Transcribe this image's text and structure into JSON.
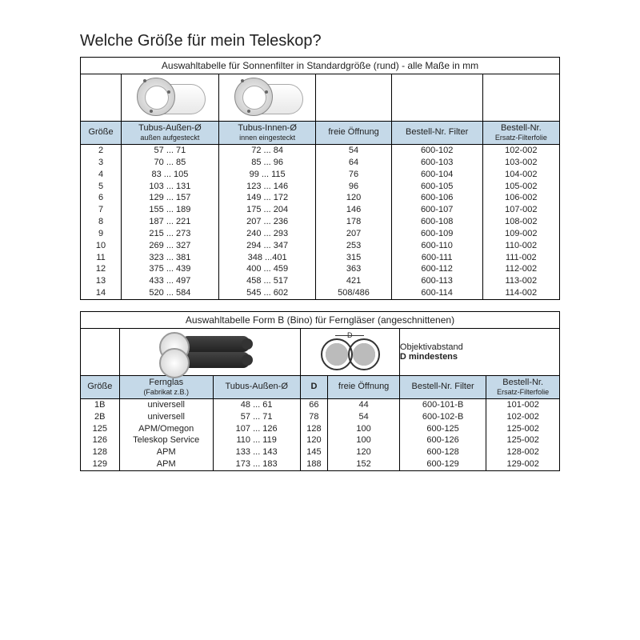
{
  "title": "Welche Größe für mein Teleskop?",
  "table1": {
    "caption": "Auswahltabelle für Sonnenfilter in Standardgröße (rund) - alle Maße in mm",
    "headers": {
      "size": "Größe",
      "outer": "Tubus-Außen-Ø",
      "outer_sub": "außen aufgesteckt",
      "inner": "Tubus-Innen-Ø",
      "inner_sub": "innen eingesteckt",
      "opening": "freie Öffnung",
      "order_filter": "Bestell-Nr. Filter",
      "order_foil": "Bestell-Nr.",
      "order_foil_sub": "Ersatz-Filterfolie"
    },
    "rows": [
      {
        "size": "2",
        "outer": "57 ... 71",
        "inner": "72 ... 84",
        "opening": "54",
        "filter": "600-102",
        "foil": "102-002"
      },
      {
        "size": "3",
        "outer": "70 ... 85",
        "inner": "85 ... 96",
        "opening": "64",
        "filter": "600-103",
        "foil": "103-002"
      },
      {
        "size": "4",
        "outer": "83 ... 105",
        "inner": "99 ... 115",
        "opening": "76",
        "filter": "600-104",
        "foil": "104-002"
      },
      {
        "size": "5",
        "outer": "103 ... 131",
        "inner": "123 ... 146",
        "opening": "96",
        "filter": "600-105",
        "foil": "105-002"
      },
      {
        "size": "6",
        "outer": "129 ... 157",
        "inner": "149 ... 172",
        "opening": "120",
        "filter": "600-106",
        "foil": "106-002"
      },
      {
        "size": "7",
        "outer": "155 ... 189",
        "inner": "175 ... 204",
        "opening": "146",
        "filter": "600-107",
        "foil": "107-002"
      },
      {
        "size": "8",
        "outer": "187 ... 221",
        "inner": "207 ... 236",
        "opening": "178",
        "filter": "600-108",
        "foil": "108-002"
      },
      {
        "size": "9",
        "outer": "215 ... 273",
        "inner": "240 ... 293",
        "opening": "207",
        "filter": "600-109",
        "foil": "109-002"
      },
      {
        "size": "10",
        "outer": "269 ... 327",
        "inner": "294 ... 347",
        "opening": "253",
        "filter": "600-110",
        "foil": "110-002"
      },
      {
        "size": "11",
        "outer": "323 ... 381",
        "inner": "348 ...401",
        "opening": "315",
        "filter": "600-111",
        "foil": "111-002"
      },
      {
        "size": "12",
        "outer": "375 ... 439",
        "inner": "400 ... 459",
        "opening": "363",
        "filter": "600-112",
        "foil": "112-002"
      },
      {
        "size": "13",
        "outer": "433 ... 497",
        "inner": "458 ... 517",
        "opening": "421",
        "filter": "600-113",
        "foil": "113-002"
      },
      {
        "size": "14",
        "outer": "520 ... 584",
        "inner": "545 ... 602",
        "opening": "508/486",
        "filter": "600-114",
        "foil": "114-002"
      }
    ]
  },
  "table2": {
    "caption": "Auswahltabelle Form B (Bino) für Ferngläser  (angeschnittenen)",
    "diagram_text1": "Objektivabstand",
    "diagram_text2": "D mindestens",
    "headers": {
      "size": "Größe",
      "fernglas": "Fernglas",
      "fernglas_sub": "(Fabrikat z.B.)",
      "outer": "Tubus-Außen-Ø",
      "d": "D",
      "opening": "freie Öffnung",
      "order_filter": "Bestell-Nr. Filter",
      "order_foil": "Bestell-Nr.",
      "order_foil_sub": "Ersatz-Filterfolie"
    },
    "rows": [
      {
        "size": "1B",
        "fernglas": "universell",
        "outer": "48 ... 61",
        "d": "66",
        "opening": "44",
        "filter": "600-101-B",
        "foil": "101-002"
      },
      {
        "size": "2B",
        "fernglas": "universell",
        "outer": "57 ... 71",
        "d": "78",
        "opening": "54",
        "filter": "600-102-B",
        "foil": "102-002"
      },
      {
        "size": "125",
        "fernglas": "APM/Omegon",
        "outer": "107 ... 126",
        "d": "128",
        "opening": "100",
        "filter": "600-125",
        "foil": "125-002"
      },
      {
        "size": "126",
        "fernglas": "Teleskop Service",
        "outer": "110 ... 119",
        "d": "120",
        "opening": "100",
        "filter": "600-126",
        "foil": "125-002"
      },
      {
        "size": "128",
        "fernglas": "APM",
        "outer": "133 ... 143",
        "d": "145",
        "opening": "120",
        "filter": "600-128",
        "foil": "128-002"
      },
      {
        "size": "129",
        "fernglas": "APM",
        "outer": "173 ... 183",
        "d": "188",
        "opening": "152",
        "filter": "600-129",
        "foil": "129-002"
      }
    ]
  },
  "colors": {
    "header_bg": "#c5d9e8",
    "border": "#000000",
    "text": "#222222"
  }
}
